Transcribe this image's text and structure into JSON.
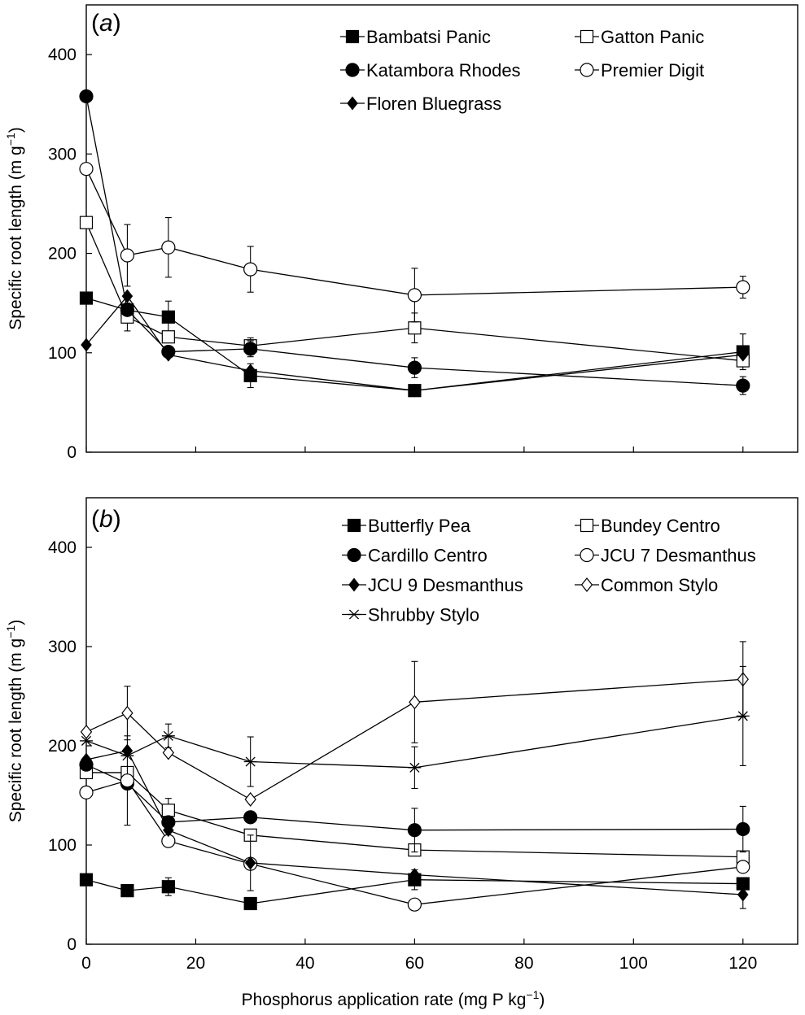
{
  "chart_data": [
    {
      "type": "line",
      "panel_label": "a",
      "ylabel": "Specific root length (m g",
      "ylabel_sup": "−1",
      "ylabel_close": ")",
      "xlabel": "",
      "xlim": [
        0,
        130
      ],
      "ylim": [
        0,
        450
      ],
      "xticks": [
        0,
        20,
        40,
        60,
        80,
        100,
        120
      ],
      "yticks": [
        0,
        100,
        200,
        300,
        400
      ],
      "show_x_tick_labels": false,
      "legend_position": "top-right",
      "x": [
        0,
        7.5,
        15,
        30,
        60,
        120
      ],
      "series": [
        {
          "name": "Bambatsi Panic",
          "marker": "square-filled",
          "values": [
            155,
            143,
            136,
            77,
            62,
            101
          ],
          "errors": [
            0,
            0,
            16,
            12,
            0,
            18
          ]
        },
        {
          "name": "Gatton Panic",
          "marker": "square-open",
          "values": [
            231,
            136,
            116,
            107,
            125,
            92
          ],
          "errors": [
            0,
            14,
            0,
            8,
            15,
            0
          ]
        },
        {
          "name": "Katambora Rhodes",
          "marker": "circle-filled",
          "values": [
            358,
            143,
            101,
            104,
            85,
            67
          ],
          "errors": [
            0,
            0,
            0,
            8,
            10,
            9
          ]
        },
        {
          "name": "Premier Digit",
          "marker": "circle-open",
          "values": [
            285,
            198,
            206,
            184,
            158,
            166
          ],
          "errors": [
            0,
            31,
            30,
            23,
            27,
            11
          ]
        },
        {
          "name": "Floren Bluegrass",
          "marker": "diamond-filled",
          "values": [
            108,
            157,
            98,
            82,
            62,
            98
          ],
          "errors": [
            0,
            0,
            0,
            0,
            0,
            0
          ]
        }
      ]
    },
    {
      "type": "line",
      "panel_label": "b",
      "ylabel": "Specific root length (m g",
      "ylabel_sup": "−1",
      "ylabel_close": ")",
      "xlabel": "Phosphorus application rate (mg P kg",
      "xlabel_sup": "−1",
      "xlabel_close": ")",
      "xlim": [
        0,
        130
      ],
      "ylim": [
        0,
        450
      ],
      "xticks": [
        0,
        20,
        40,
        60,
        80,
        100,
        120
      ],
      "yticks": [
        0,
        100,
        200,
        300,
        400
      ],
      "show_x_tick_labels": true,
      "legend_position": "top-right",
      "x": [
        0,
        7.5,
        15,
        30,
        60,
        120
      ],
      "series": [
        {
          "name": "Butterfly Pea",
          "marker": "square-filled",
          "values": [
            65,
            54,
            58,
            41,
            65,
            61
          ],
          "errors": [
            0,
            0,
            9,
            0,
            10,
            0
          ]
        },
        {
          "name": "Bundey Centro",
          "marker": "square-open",
          "values": [
            173,
            173,
            135,
            110,
            95,
            88
          ],
          "errors": [
            0,
            0,
            12,
            0,
            0,
            0
          ]
        },
        {
          "name": "Cardillo Centro",
          "marker": "circle-filled",
          "values": [
            181,
            162,
            123,
            128,
            115,
            116
          ],
          "errors": [
            0,
            0,
            0,
            0,
            22,
            23
          ]
        },
        {
          "name": "JCU 7 Desmanthus",
          "marker": "circle-open",
          "values": [
            153,
            165,
            104,
            81,
            40,
            78
          ],
          "errors": [
            0,
            45,
            0,
            0,
            0,
            0
          ]
        },
        {
          "name": "JCU 9 Desmanthus",
          "marker": "diamond-filled",
          "values": [
            186,
            195,
            115,
            82,
            70,
            50
          ],
          "errors": [
            0,
            0,
            0,
            28,
            0,
            14
          ]
        },
        {
          "name": "Common Stylo",
          "marker": "diamond-open",
          "values": [
            214,
            233,
            193,
            146,
            244,
            267
          ],
          "errors": [
            0,
            27,
            0,
            0,
            41,
            38
          ]
        },
        {
          "name": "Shrubby Stylo",
          "marker": "asterisk",
          "values": [
            205,
            190,
            210,
            184,
            178,
            230
          ],
          "errors": [
            0,
            0,
            12,
            25,
            21,
            50
          ]
        }
      ]
    }
  ]
}
